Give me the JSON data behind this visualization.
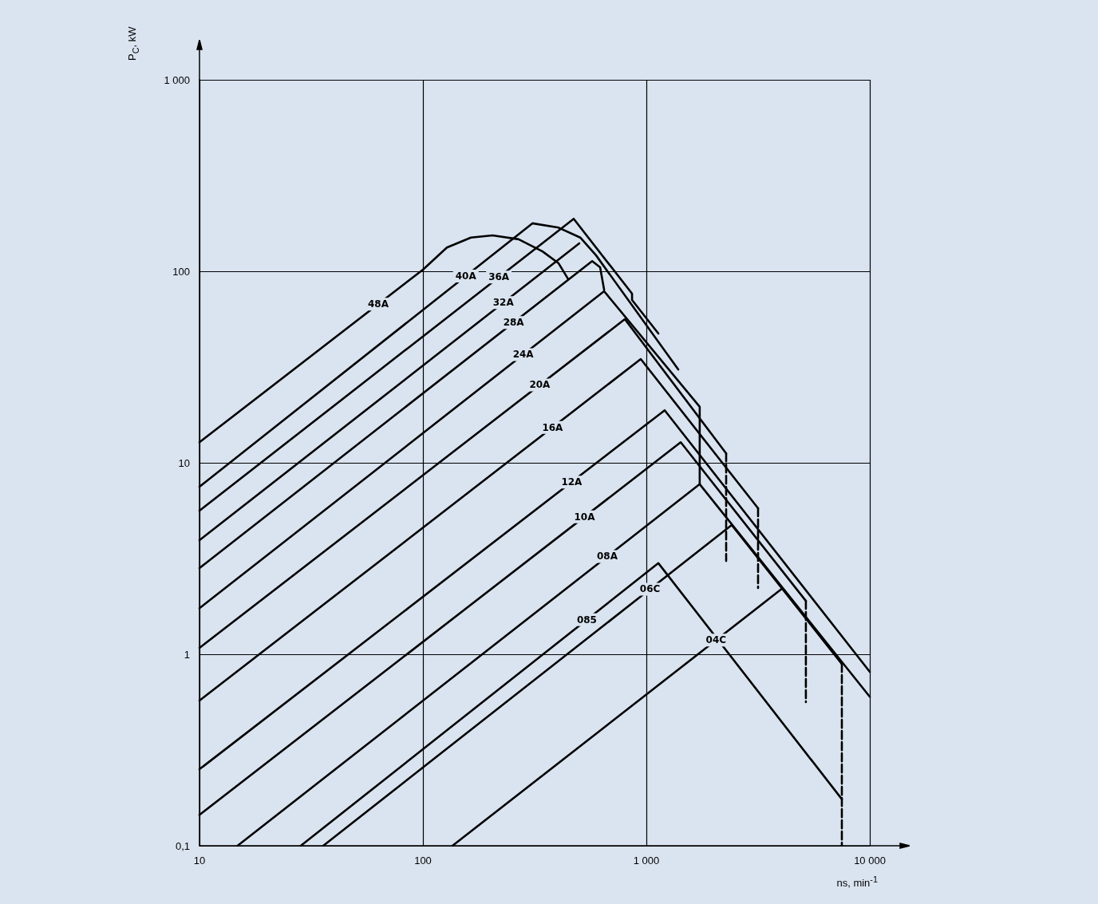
{
  "chart_data": {
    "type": "line",
    "xlabel": "ns, min$^{-1}$",
    "ylabel": "P$_{C}$, kW",
    "log": "xy",
    "grid": true,
    "legend": false,
    "marker": "none",
    "line_style": "solid",
    "xlim": [
      10,
      10000
    ],
    "xticks": [
      10,
      100,
      {
        "value": 1000,
        "label": "1 000"
      },
      {
        "value": 10000,
        "label": "10 000"
      }
    ],
    "ylim": [
      0.1,
      1000
    ],
    "yticks": [
      {
        "value": 0.1,
        "label": "0,1"
      },
      1,
      10,
      100,
      {
        "value": 1000,
        "label": "1 000"
      }
    ],
    "series": [
      {
        "name": "48A",
        "color": "#000000",
        "x": [
          10,
          100,
          128,
          164,
          205,
          268,
          343,
          405,
          447
        ],
        "values": [
          12.8,
          102,
          133,
          150,
          154,
          147,
          127,
          110,
          90.9
        ]
      },
      {
        "name": "40A",
        "color": "#000000",
        "x": [
          10,
          309,
          405,
          506,
          596,
          1389
        ],
        "values": [
          7.5,
          178,
          169,
          150,
          121,
          30.7
        ]
      },
      {
        "name": "36A",
        "color": "#000000",
        "x": [
          10,
          473,
          863,
          863,
          1132
        ],
        "values": [
          5.62,
          188,
          76.4,
          70.8,
          47.3
        ]
      },
      {
        "name": "32A",
        "color": "#000000",
        "x": [
          10,
          501
        ],
        "values": [
          3.94,
          140
        ]
      },
      {
        "name": "28A",
        "color": "#000000",
        "x": [
          10,
          572,
          621,
          647
        ],
        "values": [
          2.82,
          113,
          105,
          80.2
        ]
      },
      {
        "name": "24A",
        "color": "#000000",
        "x": [
          10,
          647,
          1733,
          1733
        ],
        "values": [
          1.74,
          78.7,
          19.6,
          7.73
        ]
      },
      {
        "name": "20A",
        "color": "#000000",
        "x": [
          10,
          801,
          2276
        ],
        "values": [
          1.08,
          56.2,
          11.2
        ]
      },
      {
        "name": "16A",
        "color": "#000000",
        "x": [
          10,
          944,
          3162
        ],
        "values": [
          0.573,
          34.8,
          5.79
        ]
      },
      {
        "name": "12A",
        "color": "#000000",
        "x": [
          10,
          1208,
          10000
        ],
        "values": [
          0.251,
          18.8,
          0.81
        ]
      },
      {
        "name": "10A",
        "color": "#000000",
        "x": [
          10,
          1425,
          5176
        ],
        "values": [
          0.145,
          12.8,
          1.9
        ]
      },
      {
        "name": "08A",
        "color": "#000000",
        "x": [
          14.8,
          1733,
          10000
        ],
        "values": [
          0.1,
          7.73,
          0.6
        ]
      },
      {
        "name": "06C",
        "color": "#000000",
        "x": [
          35.8,
          2410,
          7499
        ],
        "values": [
          0.1,
          4.73,
          0.89
        ]
      },
      {
        "name": "085",
        "color": "#000000",
        "x": [
          28.4,
          1132,
          7499
        ],
        "values": [
          0.1,
          2.99,
          0.175
        ]
      },
      {
        "name": "04C",
        "color": "#000000",
        "x": [
          135.6,
          4046
        ],
        "values": [
          0.1,
          2.2
        ]
      },
      {
        "color": "#000000",
        "line_style": "dashed",
        "x": [
          2276,
          2276
        ],
        "values": [
          11.2,
          3.07
        ]
      },
      {
        "color": "#000000",
        "line_style": "dashed",
        "x": [
          3162,
          3162
        ],
        "values": [
          5.79,
          2.22
        ]
      },
      {
        "color": "#000000",
        "line_style": "dashed",
        "x": [
          5176,
          5176
        ],
        "values": [
          1.9,
          0.562
        ]
      },
      {
        "color": "#000000",
        "line_style": "dashed",
        "x": [
          7499,
          7499
        ],
        "values": [
          0.89,
          0.1
        ]
      }
    ]
  }
}
